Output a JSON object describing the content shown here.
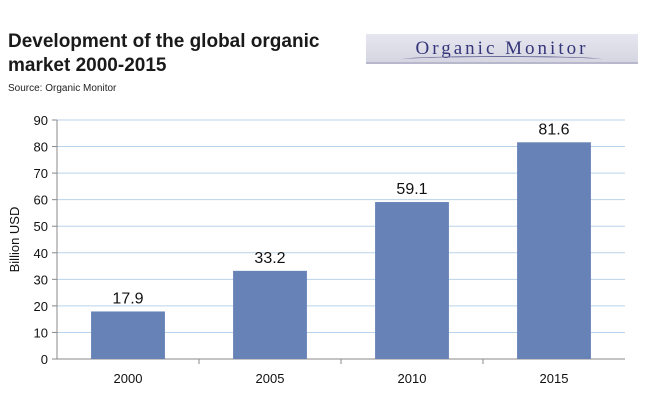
{
  "header": {
    "title": "Development of the global organic market 2000-2015",
    "source": "Source: Organic Monitor",
    "logo_text": "Organic Monitor"
  },
  "colors": {
    "bar": "#6682b6",
    "grid": "#b9d3ea",
    "axis": "#888888"
  },
  "chart_data": {
    "type": "bar",
    "title": "Development of the global organic market 2000-2015",
    "categories": [
      "2000",
      "2005",
      "2010",
      "2015"
    ],
    "values": [
      17.9,
      33.2,
      59.1,
      81.6
    ],
    "data_labels": [
      "17.9",
      "33.2",
      "59.1",
      "81.6"
    ],
    "xlabel": "",
    "ylabel": "Billion USD",
    "ylim": [
      0,
      90
    ],
    "yticks": [
      0,
      10,
      20,
      30,
      40,
      50,
      60,
      70,
      80,
      90
    ],
    "grid": true,
    "legend": "none"
  }
}
